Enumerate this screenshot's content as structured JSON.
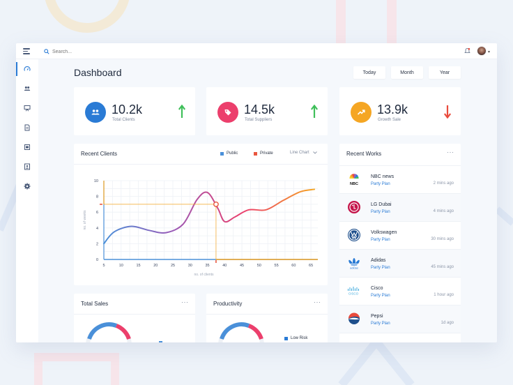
{
  "header": {
    "search_placeholder": "Search...",
    "page_title": "Dashboard"
  },
  "sidebar": {
    "items": [
      "dashboard",
      "clients",
      "reports",
      "documents",
      "calendar",
      "profile",
      "settings"
    ]
  },
  "range": {
    "today": "Today",
    "month": "Month",
    "year": "Year"
  },
  "stats": [
    {
      "value": "10.2k",
      "label": "Total Clients",
      "icon": "users-icon",
      "color": "#2a7bd5",
      "trend": "up",
      "trend_color": "#3fbf5a"
    },
    {
      "value": "14.5k",
      "label": "Total Suppliers",
      "icon": "tag-icon",
      "color": "#ec3f6c",
      "trend": "up",
      "trend_color": "#3fbf5a"
    },
    {
      "value": "13.9k",
      "label": "Growth Sale",
      "icon": "trend-up-icon",
      "color": "#f5a623",
      "trend": "down",
      "trend_color": "#e94b3c"
    }
  ],
  "recent_clients": {
    "title": "Recent Clients",
    "legend_public": "Public",
    "legend_private": "Private",
    "chart_type_label": "Line Chart",
    "public_color": "#4a90d9",
    "private_color": "#e9573f"
  },
  "chart_data": {
    "type": "line",
    "title": "Recent Clients",
    "xlabel": "no. of clients",
    "ylabel": "no. of weeks",
    "x_ticks": [
      5,
      10,
      15,
      20,
      25,
      30,
      35,
      40,
      45,
      50,
      55,
      60,
      65
    ],
    "y_ticks": [
      0,
      2,
      4,
      6,
      8,
      10
    ],
    "xlim": [
      5,
      67
    ],
    "ylim": [
      0,
      10
    ],
    "series": [
      {
        "name": "clients",
        "x": [
          5,
          8,
          13,
          18,
          23,
          28,
          32,
          35,
          38,
          40,
          43,
          47,
          52,
          57,
          62,
          66
        ],
        "y": [
          2.0,
          3.5,
          4.2,
          3.7,
          3.4,
          4.5,
          7.6,
          8.5,
          6.5,
          4.8,
          5.4,
          6.3,
          6.3,
          7.5,
          8.6,
          8.9
        ]
      }
    ],
    "highlight": {
      "x": 37.5,
      "y": 7.0
    },
    "gradient_colors": [
      "#4a90d9",
      "#9b59b6",
      "#ec3f6c",
      "#f5a623"
    ]
  },
  "recent_works": {
    "title": "Recent Works",
    "items": [
      {
        "name": "NBC news",
        "plan": "Party Plan",
        "ago": "2 mins ago",
        "logo": "nbc-logo"
      },
      {
        "name": "LG Dubai",
        "plan": "Party Plan",
        "ago": "4 mins ago",
        "logo": "lg-logo"
      },
      {
        "name": "Volkswagen",
        "plan": "Party Plan",
        "ago": "30 mins ago",
        "logo": "vw-logo"
      },
      {
        "name": "Adidas",
        "plan": "Party Plan",
        "ago": "45 mins ago",
        "logo": "adidas-logo"
      },
      {
        "name": "Cisco",
        "plan": "Party Plan",
        "ago": "1 hour ago",
        "logo": "cisco-logo"
      },
      {
        "name": "Pepsi",
        "plan": "Party Plan",
        "ago": "1d ago",
        "logo": "pepsi-logo"
      }
    ]
  },
  "total_sales": {
    "title": "Total Sales"
  },
  "productivity": {
    "title": "Productivity",
    "legend_low_risk": "Low Risk"
  }
}
